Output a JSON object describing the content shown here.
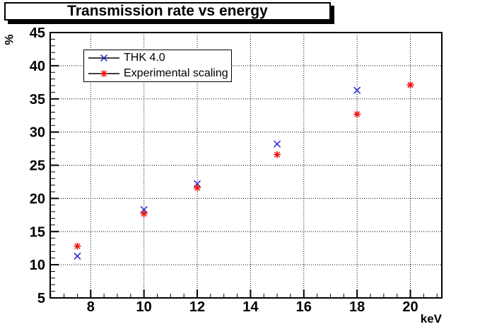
{
  "window": {
    "background": "#ffffff",
    "frame_color": "#000000"
  },
  "chart_data": {
    "type": "scatter",
    "title": "Transmission rate vs energy",
    "xlabel": "keV",
    "ylabel": "%",
    "xlim": [
      6.48,
      21.18
    ],
    "ylim": [
      5,
      45
    ],
    "x_major_ticks": [
      8,
      10,
      12,
      14,
      16,
      18,
      20
    ],
    "x_minor_step": 0.5,
    "y_major_ticks": [
      5,
      10,
      15,
      20,
      25,
      30,
      35,
      40,
      45
    ],
    "y_minor_step": 1,
    "grid": {
      "show": true,
      "style": "dotted",
      "color": "#000000",
      "on": "major-ticks"
    },
    "legend": {
      "position": "top-left"
    },
    "series": [
      {
        "name": "THK 4.0",
        "marker": "cross-x",
        "color": "#2222cc",
        "points": [
          [
            7.5,
            11.3
          ],
          [
            10,
            18.3
          ],
          [
            12,
            22.2
          ],
          [
            15,
            28.2
          ],
          [
            18,
            36.3
          ]
        ]
      },
      {
        "name": "Experimental scaling",
        "marker": "asterisk",
        "color": "#ee1111",
        "points": [
          [
            7.5,
            12.8
          ],
          [
            10,
            17.7
          ],
          [
            12,
            21.6
          ],
          [
            15,
            26.6
          ],
          [
            18,
            32.7
          ],
          [
            20,
            37.1
          ]
        ]
      }
    ]
  }
}
